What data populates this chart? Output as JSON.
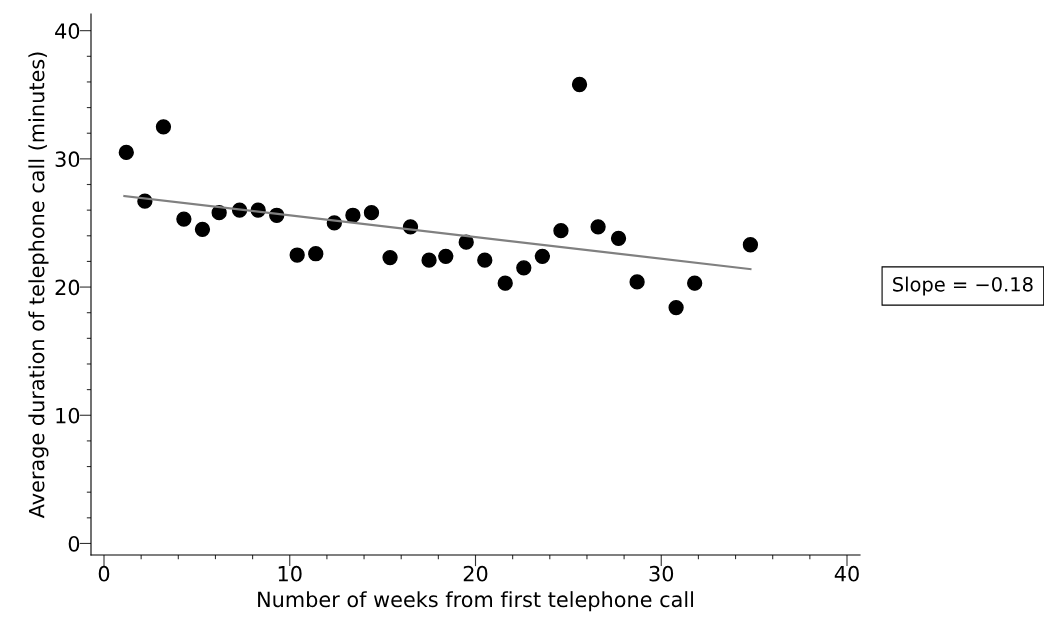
{
  "chart_data": {
    "type": "scatter",
    "xlabel": "Number of weeks from first telephone call",
    "ylabel": "Average duration of telephone call (minutes)",
    "annotations": [
      "Slope = −0.18"
    ],
    "series": [
      {
        "color": "#000000",
        "marker": "circle",
        "x": [
          1.2,
          2.2,
          3.2,
          4.3,
          5.3,
          6.2,
          7.3,
          8.3,
          9.3,
          10.4,
          11.4,
          12.4,
          13.4,
          14.4,
          15.4,
          16.5,
          17.5,
          18.4,
          19.5,
          20.5,
          21.6,
          22.6,
          23.6,
          24.6,
          25.6,
          26.6,
          27.7,
          28.7,
          30.8,
          31.8,
          34.8
        ],
        "values": [
          30.5,
          26.7,
          32.5,
          25.3,
          24.5,
          25.8,
          26.0,
          26.0,
          25.6,
          22.5,
          22.6,
          25.0,
          25.6,
          25.8,
          22.3,
          24.7,
          22.1,
          22.4,
          23.5,
          22.1,
          20.3,
          21.5,
          22.4,
          24.4,
          35.8,
          24.7,
          23.8,
          20.4,
          18.4,
          20.3,
          23.3
        ]
      },
      {
        "type": "line",
        "color": "#808080",
        "marker": "none",
        "line_style": "solid",
        "x": [
          1.1,
          34.8
        ],
        "values": [
          27.1,
          21.4
        ]
      }
    ],
    "xlim": [
      -0.7,
      40.7
    ],
    "ylim": [
      -0.9,
      41.3
    ],
    "xticks": [
      0,
      {
        "value": 2,
        "label": null
      },
      {
        "value": 4,
        "label": null
      },
      {
        "value": 6,
        "label": null
      },
      {
        "value": 8,
        "label": null
      },
      10,
      {
        "value": 12,
        "label": null
      },
      {
        "value": 14,
        "label": null
      },
      {
        "value": 16,
        "label": null
      },
      {
        "value": 18,
        "label": null
      },
      20,
      {
        "value": 22,
        "label": null
      },
      {
        "value": 24,
        "label": null
      },
      {
        "value": 26,
        "label": null
      },
      {
        "value": 28,
        "label": null
      },
      30,
      {
        "value": 32,
        "label": null
      },
      {
        "value": 34,
        "label": null
      },
      {
        "value": 36,
        "label": null
      },
      {
        "value": 38,
        "label": null
      },
      40
    ],
    "yticks": [
      0,
      {
        "value": 2,
        "label": null
      },
      {
        "value": 4,
        "label": null
      },
      {
        "value": 6,
        "label": null
      },
      {
        "value": 8,
        "label": null
      },
      10,
      {
        "value": 12,
        "label": null
      },
      {
        "value": 14,
        "label": null
      },
      {
        "value": 16,
        "label": null
      },
      {
        "value": 18,
        "label": null
      },
      20,
      {
        "value": 22,
        "label": null
      },
      {
        "value": 24,
        "label": null
      },
      {
        "value": 26,
        "label": null
      },
      {
        "value": 28,
        "label": null
      },
      30,
      {
        "value": 32,
        "label": null
      },
      {
        "value": 34,
        "label": null
      },
      {
        "value": 36,
        "label": null
      },
      {
        "value": 38,
        "label": null
      },
      40
    ],
    "grid": false,
    "legend": false
  }
}
